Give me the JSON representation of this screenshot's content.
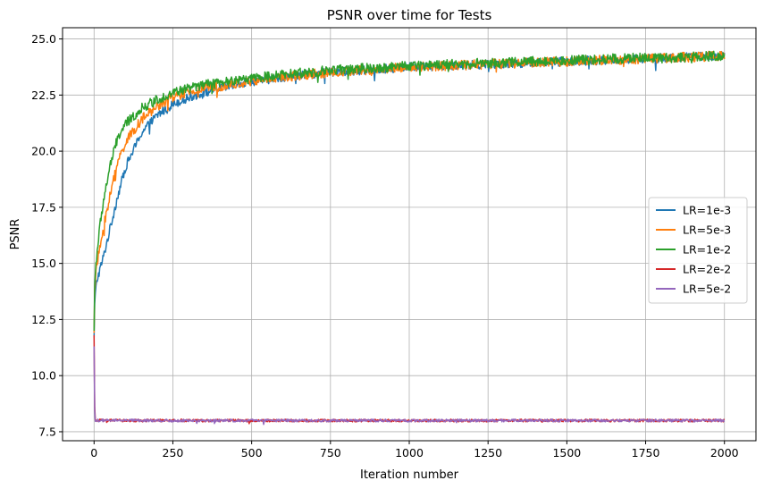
{
  "chart_data": {
    "type": "line",
    "title": "PSNR over time for Tests",
    "xlabel": "Iteration number",
    "ylabel": "PSNR",
    "xlim": [
      -100,
      2100
    ],
    "ylim": [
      7.1,
      25.5
    ],
    "xticks": [
      0,
      250,
      500,
      750,
      1000,
      1250,
      1500,
      1750,
      2000
    ],
    "xtick_labels": [
      "0",
      "250",
      "500",
      "750",
      "1000",
      "1250",
      "1500",
      "1750",
      "2000"
    ],
    "yticks": [
      7.5,
      10.0,
      12.5,
      15.0,
      17.5,
      20.0,
      22.5,
      25.0
    ],
    "ytick_labels": [
      "7.5",
      "10.0",
      "12.5",
      "15.0",
      "17.5",
      "20.0",
      "22.5",
      "25.0"
    ],
    "grid": true,
    "legend_position": "center-right",
    "series": [
      {
        "name": "LR=1e-3",
        "color": "#1f77b4",
        "x": [
          0,
          2,
          5,
          10,
          20,
          30,
          50,
          75,
          100,
          150,
          200,
          250,
          300,
          350,
          400,
          500,
          600,
          700,
          800,
          900,
          1000,
          1100,
          1200,
          1300,
          1400,
          1500,
          1600,
          1700,
          1800,
          1900,
          2000
        ],
        "y": [
          11.7,
          13.2,
          13.8,
          14.3,
          14.8,
          15.3,
          16.5,
          18.0,
          19.3,
          20.8,
          21.6,
          22.1,
          22.4,
          22.6,
          22.8,
          23.1,
          23.3,
          23.45,
          23.55,
          23.65,
          23.75,
          23.8,
          23.85,
          23.9,
          23.95,
          24.0,
          24.05,
          24.1,
          24.15,
          24.2,
          24.25
        ],
        "noise": 0.2
      },
      {
        "name": "LR=5e-3",
        "color": "#ff7f0e",
        "x": [
          0,
          2,
          5,
          10,
          20,
          30,
          50,
          75,
          100,
          150,
          200,
          250,
          300,
          350,
          400,
          500,
          600,
          700,
          800,
          900,
          1000,
          1100,
          1200,
          1300,
          1400,
          1500,
          1600,
          1700,
          1800,
          1900,
          2000
        ],
        "y": [
          11.9,
          13.8,
          14.5,
          15.0,
          15.8,
          16.6,
          18.0,
          19.5,
          20.4,
          21.4,
          22.0,
          22.4,
          22.6,
          22.8,
          22.9,
          23.1,
          23.3,
          23.45,
          23.55,
          23.65,
          23.75,
          23.8,
          23.85,
          23.9,
          23.95,
          24.0,
          24.05,
          24.1,
          24.15,
          24.2,
          24.25
        ],
        "noise": 0.22
      },
      {
        "name": "LR=1e-2",
        "color": "#2ca02c",
        "x": [
          0,
          2,
          5,
          10,
          20,
          30,
          50,
          75,
          100,
          150,
          200,
          250,
          300,
          350,
          400,
          500,
          600,
          700,
          800,
          900,
          1000,
          1100,
          1200,
          1300,
          1400,
          1500,
          1600,
          1700,
          1800,
          1900,
          2000
        ],
        "y": [
          12.0,
          14.0,
          14.8,
          15.6,
          16.8,
          17.8,
          19.3,
          20.6,
          21.2,
          21.9,
          22.3,
          22.6,
          22.8,
          22.95,
          23.05,
          23.25,
          23.4,
          23.55,
          23.65,
          23.72,
          23.8,
          23.85,
          23.9,
          23.95,
          24.0,
          24.05,
          24.1,
          24.15,
          24.15,
          24.2,
          24.25
        ],
        "noise": 0.22
      },
      {
        "name": "LR=2e-2",
        "color": "#d62728",
        "x": [
          0,
          1,
          2,
          3,
          5,
          100,
          500,
          1000,
          1500,
          2000
        ],
        "y": [
          11.8,
          11.4,
          8.6,
          8.0,
          8.0,
          8.0,
          8.0,
          8.0,
          8.0,
          8.0
        ],
        "noise": 0.06
      },
      {
        "name": "LR=5e-2",
        "color": "#9467bd",
        "x": [
          0,
          1,
          2,
          3,
          5,
          100,
          500,
          1000,
          1500,
          2000
        ],
        "y": [
          11.3,
          10.8,
          8.4,
          8.0,
          8.0,
          8.0,
          8.0,
          8.0,
          8.0,
          8.0
        ],
        "noise": 0.06
      }
    ]
  }
}
